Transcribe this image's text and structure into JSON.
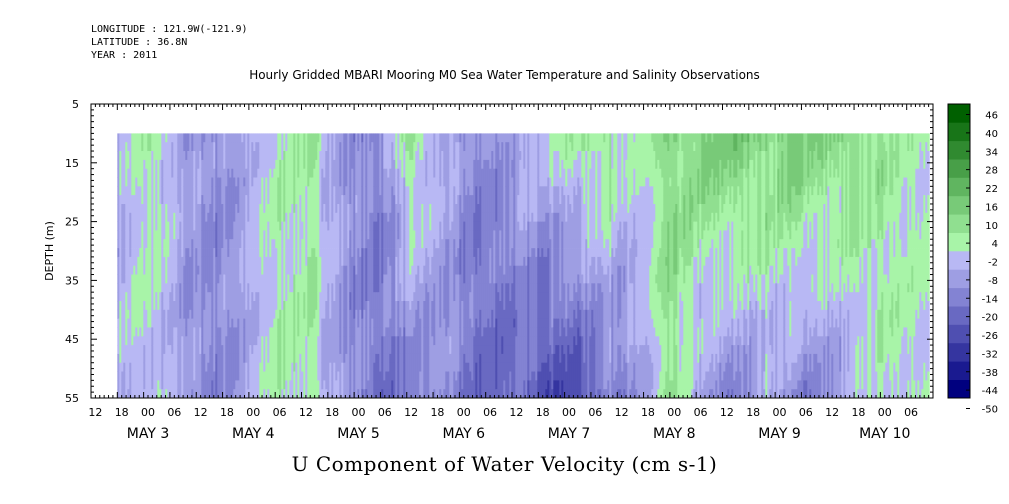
{
  "header": {
    "longitude": "LONGITUDE : 121.9W(-121.9)",
    "latitude": "LATITUDE : 36.8N",
    "year": "YEAR : 2011"
  },
  "chart_data": {
    "type": "heatmap",
    "title": "Hourly Gridded MBARI Mooring M0 Sea Water Temperature and Salinity Observations",
    "xlabel": "U Component of Water Velocity (cm s-1)",
    "ylabel": "DEPTH (m)",
    "y_range": [
      5,
      55
    ],
    "y_reversed": true,
    "y_ticks": [
      5,
      15,
      25,
      35,
      45,
      55
    ],
    "data_depth_range": [
      10,
      55
    ],
    "x_range_hours": [
      "2011-05-02 11:00",
      "2011-05-10 11:00"
    ],
    "data_time_range": [
      "2011-05-02 17:00",
      "2011-05-10 10:00"
    ],
    "x_hour_labels": [
      "12",
      "18",
      "00",
      "06",
      "12",
      "18",
      "00",
      "06",
      "12",
      "18",
      "00",
      "06",
      "12",
      "18",
      "00",
      "06",
      "12",
      "18",
      "00",
      "06",
      "12",
      "18",
      "00",
      "06",
      "12",
      "18",
      "00",
      "06",
      "12",
      "18",
      "00",
      "06"
    ],
    "x_day_labels": [
      "MAY  3",
      "MAY  4",
      "MAY  5",
      "MAY  6",
      "MAY  7",
      "MAY  8",
      "MAY  9",
      "MAY 10"
    ],
    "colorbar": {
      "levels": [
        -50,
        -44,
        -38,
        -32,
        -26,
        -20,
        -14,
        -8,
        -2,
        4,
        10,
        16,
        22,
        28,
        34,
        40,
        46
      ],
      "labels": [
        "46",
        "40",
        "34",
        "28",
        "22",
        "16",
        "10",
        "4",
        "-2",
        "-8",
        "-14",
        "-20",
        "-26",
        "-32",
        "-38",
        "-44",
        "-50"
      ],
      "low_color": "#00007f",
      "mid_low_color": "#b8b8f4",
      "mid_high_color": "#a8f4a8",
      "high_color": "#006000"
    },
    "column_profiles": {
      "note": "mean U velocity (cm s-1) per time column, top (10 m) to bottom (55 m)",
      "time_fraction": [
        0.0,
        0.04,
        0.08,
        0.12,
        0.16,
        0.2,
        0.24,
        0.28,
        0.32,
        0.36,
        0.4,
        0.44,
        0.48,
        0.52,
        0.56,
        0.6,
        0.64,
        0.68,
        0.72,
        0.76,
        0.8,
        0.84,
        0.88,
        0.92,
        0.96,
        1.0
      ],
      "surface": [
        -8,
        2,
        -10,
        -14,
        -8,
        0,
        2,
        -12,
        -16,
        4,
        -8,
        -16,
        -10,
        -4,
        2,
        6,
        -4,
        8,
        10,
        12,
        10,
        12,
        8,
        6,
        4,
        -4
      ],
      "bottom": [
        -6,
        -4,
        -12,
        -16,
        -10,
        2,
        0,
        -14,
        -20,
        -20,
        -14,
        -22,
        -24,
        -26,
        -30,
        -18,
        -14,
        4,
        -12,
        -16,
        -8,
        -16,
        -14,
        -6,
        2,
        -6
      ]
    }
  }
}
